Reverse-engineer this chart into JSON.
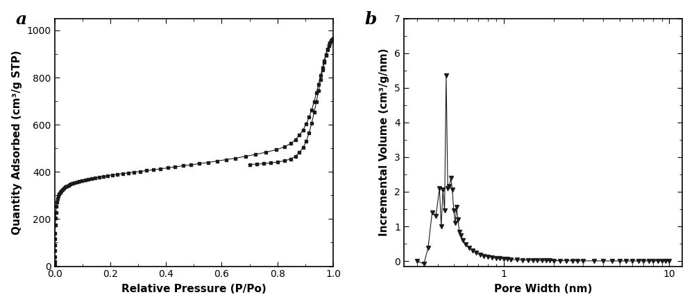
{
  "panel_a_label": "a",
  "panel_b_label": "b",
  "xlabel_a": "Relative Pressure (P/Po)",
  "ylabel_a": "Quantity Adsorbed (cm³/g STP)",
  "xlabel_b": "Pore Width (nm)",
  "ylabel_b": "Incremental Volume (cm³/g/nm)",
  "ylim_a": [
    0,
    1050
  ],
  "yticks_a": [
    0,
    200,
    400,
    600,
    800,
    1000
  ],
  "xlim_a": [
    0.0,
    1.0
  ],
  "xticks_a": [
    0.0,
    0.2,
    0.4,
    0.6,
    0.8,
    1.0
  ],
  "ylim_b": [
    -0.15,
    7.0
  ],
  "yticks_b": [
    0,
    1,
    2,
    3,
    4,
    5,
    6,
    7
  ],
  "color": "#1a1a1a",
  "adsorption_x": [
    0.0002,
    0.0004,
    0.0006,
    0.0009,
    0.0012,
    0.0016,
    0.002,
    0.003,
    0.004,
    0.005,
    0.007,
    0.009,
    0.011,
    0.014,
    0.017,
    0.02,
    0.024,
    0.028,
    0.033,
    0.038,
    0.044,
    0.05,
    0.057,
    0.064,
    0.072,
    0.08,
    0.089,
    0.099,
    0.11,
    0.121,
    0.133,
    0.146,
    0.16,
    0.175,
    0.191,
    0.208,
    0.226,
    0.245,
    0.265,
    0.286,
    0.308,
    0.331,
    0.355,
    0.38,
    0.406,
    0.433,
    0.461,
    0.49,
    0.52,
    0.551,
    0.583,
    0.616,
    0.65,
    0.685,
    0.721,
    0.758,
    0.795,
    0.825,
    0.848,
    0.865,
    0.879,
    0.892,
    0.904,
    0.914,
    0.923,
    0.932,
    0.94,
    0.948,
    0.955,
    0.962,
    0.968,
    0.974,
    0.979,
    0.984,
    0.988,
    0.992,
    0.995,
    0.997,
    0.999
  ],
  "adsorption_y": [
    5,
    20,
    40,
    65,
    90,
    115,
    140,
    175,
    205,
    228,
    255,
    273,
    287,
    298,
    307,
    314,
    320,
    325,
    330,
    335,
    339,
    343,
    347,
    350,
    354,
    357,
    360,
    363,
    366,
    369,
    372,
    375,
    378,
    381,
    384,
    387,
    390,
    393,
    396,
    399,
    402,
    406,
    409,
    413,
    417,
    421,
    426,
    430,
    435,
    440,
    446,
    452,
    458,
    466,
    474,
    483,
    494,
    506,
    520,
    537,
    556,
    578,
    604,
    632,
    663,
    698,
    735,
    772,
    808,
    842,
    872,
    898,
    919,
    935,
    947,
    955,
    960,
    963,
    965
  ],
  "desorption_x": [
    0.999,
    0.997,
    0.995,
    0.992,
    0.988,
    0.984,
    0.979,
    0.974,
    0.968,
    0.962,
    0.955,
    0.948,
    0.94,
    0.932,
    0.923,
    0.914,
    0.904,
    0.892,
    0.879,
    0.865,
    0.848,
    0.825,
    0.8,
    0.775,
    0.75,
    0.725,
    0.7
  ],
  "desorption_y": [
    965,
    963,
    960,
    956,
    948,
    935,
    918,
    895,
    866,
    831,
    790,
    745,
    698,
    652,
    607,
    566,
    531,
    503,
    482,
    466,
    455,
    447,
    442,
    438,
    435,
    433,
    431
  ],
  "pore_x": [
    0.3,
    0.33,
    0.35,
    0.37,
    0.39,
    0.41,
    0.42,
    0.43,
    0.44,
    0.45,
    0.46,
    0.47,
    0.48,
    0.49,
    0.5,
    0.51,
    0.52,
    0.53,
    0.54,
    0.55,
    0.57,
    0.59,
    0.62,
    0.65,
    0.68,
    0.72,
    0.76,
    0.8,
    0.85,
    0.9,
    0.95,
    1.0,
    1.05,
    1.1,
    1.2,
    1.3,
    1.4,
    1.5,
    1.6,
    1.7,
    1.8,
    1.9,
    2.0,
    2.2,
    2.4,
    2.6,
    2.8,
    3.0,
    3.5,
    4.0,
    4.5,
    5.0,
    5.5,
    6.0,
    6.5,
    7.0,
    7.5,
    8.0,
    8.5,
    9.0,
    9.5,
    10.0
  ],
  "pore_y": [
    0.0,
    -0.08,
    0.38,
    1.4,
    1.3,
    2.1,
    1.0,
    2.05,
    1.45,
    5.35,
    2.1,
    2.15,
    2.4,
    2.05,
    1.45,
    1.1,
    1.55,
    1.2,
    0.85,
    0.75,
    0.6,
    0.48,
    0.38,
    0.3,
    0.24,
    0.19,
    0.15,
    0.12,
    0.1,
    0.085,
    0.072,
    0.062,
    0.054,
    0.047,
    0.037,
    0.03,
    0.025,
    0.021,
    0.018,
    0.015,
    0.013,
    0.011,
    0.01,
    0.008,
    0.007,
    0.006,
    0.005,
    0.004,
    0.003,
    0.003,
    0.002,
    0.002,
    0.002,
    0.001,
    0.001,
    0.001,
    0.001,
    0.001,
    0.001,
    0.001,
    0.001,
    0.0
  ]
}
